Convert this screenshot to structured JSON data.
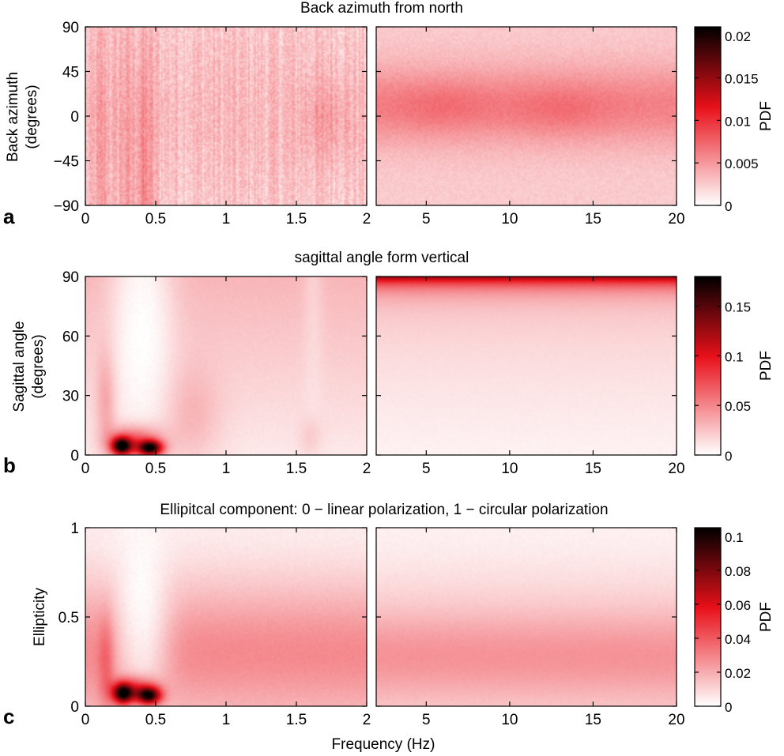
{
  "figure": {
    "xlabel": "Frequency (Hz)",
    "colormap": {
      "low": "#ffffff",
      "mid": "#e8101a",
      "high": "#000000"
    }
  },
  "chart_data": [
    {
      "panel_label": "a",
      "type": "heatmap",
      "title": "Back azimuth from north",
      "ylabel_lines": [
        "Back azimuth",
        "(degrees)"
      ],
      "ylim": [
        -90,
        90
      ],
      "yticks": [
        90,
        45,
        0,
        -45,
        -90
      ],
      "yticklabels": [
        "90",
        "45",
        "0",
        "−45",
        "−90"
      ],
      "left_xlim": [
        0,
        2
      ],
      "left_xticks": [
        0,
        0.5,
        1,
        1.5,
        2
      ],
      "left_xticklabels": [
        "0",
        "0.5",
        "1",
        "1.5",
        "2"
      ],
      "right_xlim": [
        2,
        20
      ],
      "right_xticks": [
        5,
        10,
        15,
        20
      ],
      "right_xticklabels": [
        "5",
        "10",
        "15",
        "20"
      ],
      "colorbar": {
        "label": "PDF",
        "clim": [
          0,
          0.021
        ],
        "ticks": [
          0,
          0.005,
          0.01,
          0.015,
          0.02
        ],
        "ticklabels": [
          "0",
          "0.005",
          "0.01",
          "0.015",
          "0.02"
        ]
      }
    },
    {
      "panel_label": "b",
      "type": "heatmap",
      "title": "sagittal angle form vertical",
      "ylabel_lines": [
        "Sagittal angle",
        "(degrees)"
      ],
      "ylim": [
        0,
        90
      ],
      "yticks": [
        90,
        60,
        30,
        0
      ],
      "yticklabels": [
        "90",
        "60",
        "30",
        "0"
      ],
      "left_xlim": [
        0,
        2
      ],
      "left_xticks": [
        0,
        0.5,
        1,
        1.5,
        2
      ],
      "left_xticklabels": [
        "0",
        "0.5",
        "1",
        "1.5",
        "2"
      ],
      "right_xlim": [
        2,
        20
      ],
      "right_xticks": [
        5,
        10,
        15,
        20
      ],
      "right_xticklabels": [
        "5",
        "10",
        "15",
        "20"
      ],
      "colorbar": {
        "label": "PDF",
        "clim": [
          0,
          0.18
        ],
        "ticks": [
          0,
          0.05,
          0.1,
          0.15
        ],
        "ticklabels": [
          "0",
          "0.05",
          "0.1",
          "0.15"
        ]
      }
    },
    {
      "panel_label": "c",
      "type": "heatmap",
      "title": "Ellipitcal component: 0 − linear polarization, 1 − circular polarization",
      "ylabel_lines": [
        "Ellipticity"
      ],
      "ylim": [
        0,
        1
      ],
      "yticks": [
        1,
        0.5,
        0
      ],
      "yticklabels": [
        "1",
        "0.5",
        "0"
      ],
      "left_xlim": [
        0,
        2
      ],
      "left_xticks": [
        0,
        0.5,
        1,
        1.5,
        2
      ],
      "left_xticklabels": [
        "0",
        "0.5",
        "1",
        "1.5",
        "2"
      ],
      "right_xlim": [
        2,
        20
      ],
      "right_xticks": [
        5,
        10,
        15,
        20
      ],
      "right_xticklabels": [
        "5",
        "10",
        "15",
        "20"
      ],
      "colorbar": {
        "label": "PDF",
        "clim": [
          0,
          0.105
        ],
        "ticks": [
          0,
          0.02,
          0.04,
          0.06,
          0.08,
          0.1
        ],
        "ticklabels": [
          "0",
          "0.02",
          "0.04",
          "0.06",
          "0.08",
          "0.1"
        ]
      }
    }
  ]
}
